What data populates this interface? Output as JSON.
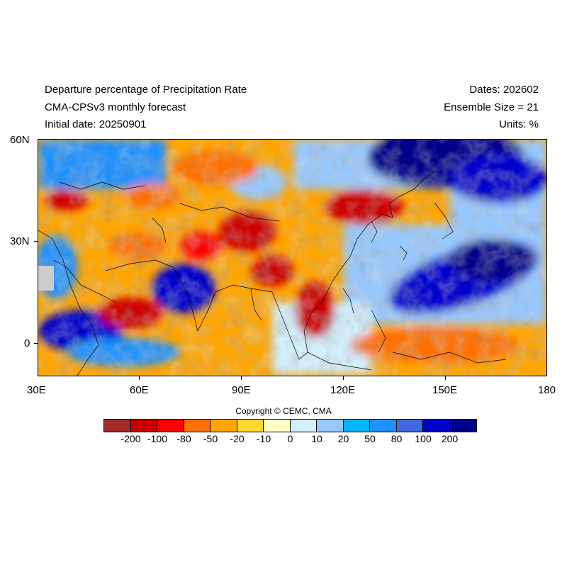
{
  "header": {
    "title_line1": "Departure percentage of Precipitation Rate",
    "title_line2": "CMA-CPSv3 monthly forecast",
    "title_line3": "Initial date: 20250901",
    "dates": "Dates: 202602",
    "ensemble": "Ensemble Size = 21",
    "units": "Units: %"
  },
  "axes": {
    "lon_labels": [
      "30E",
      "60E",
      "90E",
      "120E",
      "150E",
      "180"
    ],
    "lat_labels": [
      "60N",
      "30N",
      "0"
    ]
  },
  "copyright": "Copyright © CEMC, CMA",
  "colorbar": {
    "colors": [
      "#a52a2a",
      "#cd0000",
      "#ff0000",
      "#ff7000",
      "#ffa500",
      "#ffd932",
      "#ffffc8",
      "#d2f0ff",
      "#96c8ff",
      "#00b4ff",
      "#1e90ff",
      "#4169e1",
      "#0000cd",
      "#00008b"
    ],
    "labels": [
      "-200",
      "-100",
      "-80",
      "-50",
      "-20",
      "-10",
      "0",
      "10",
      "20",
      "50",
      "80",
      "100",
      "200"
    ]
  }
}
